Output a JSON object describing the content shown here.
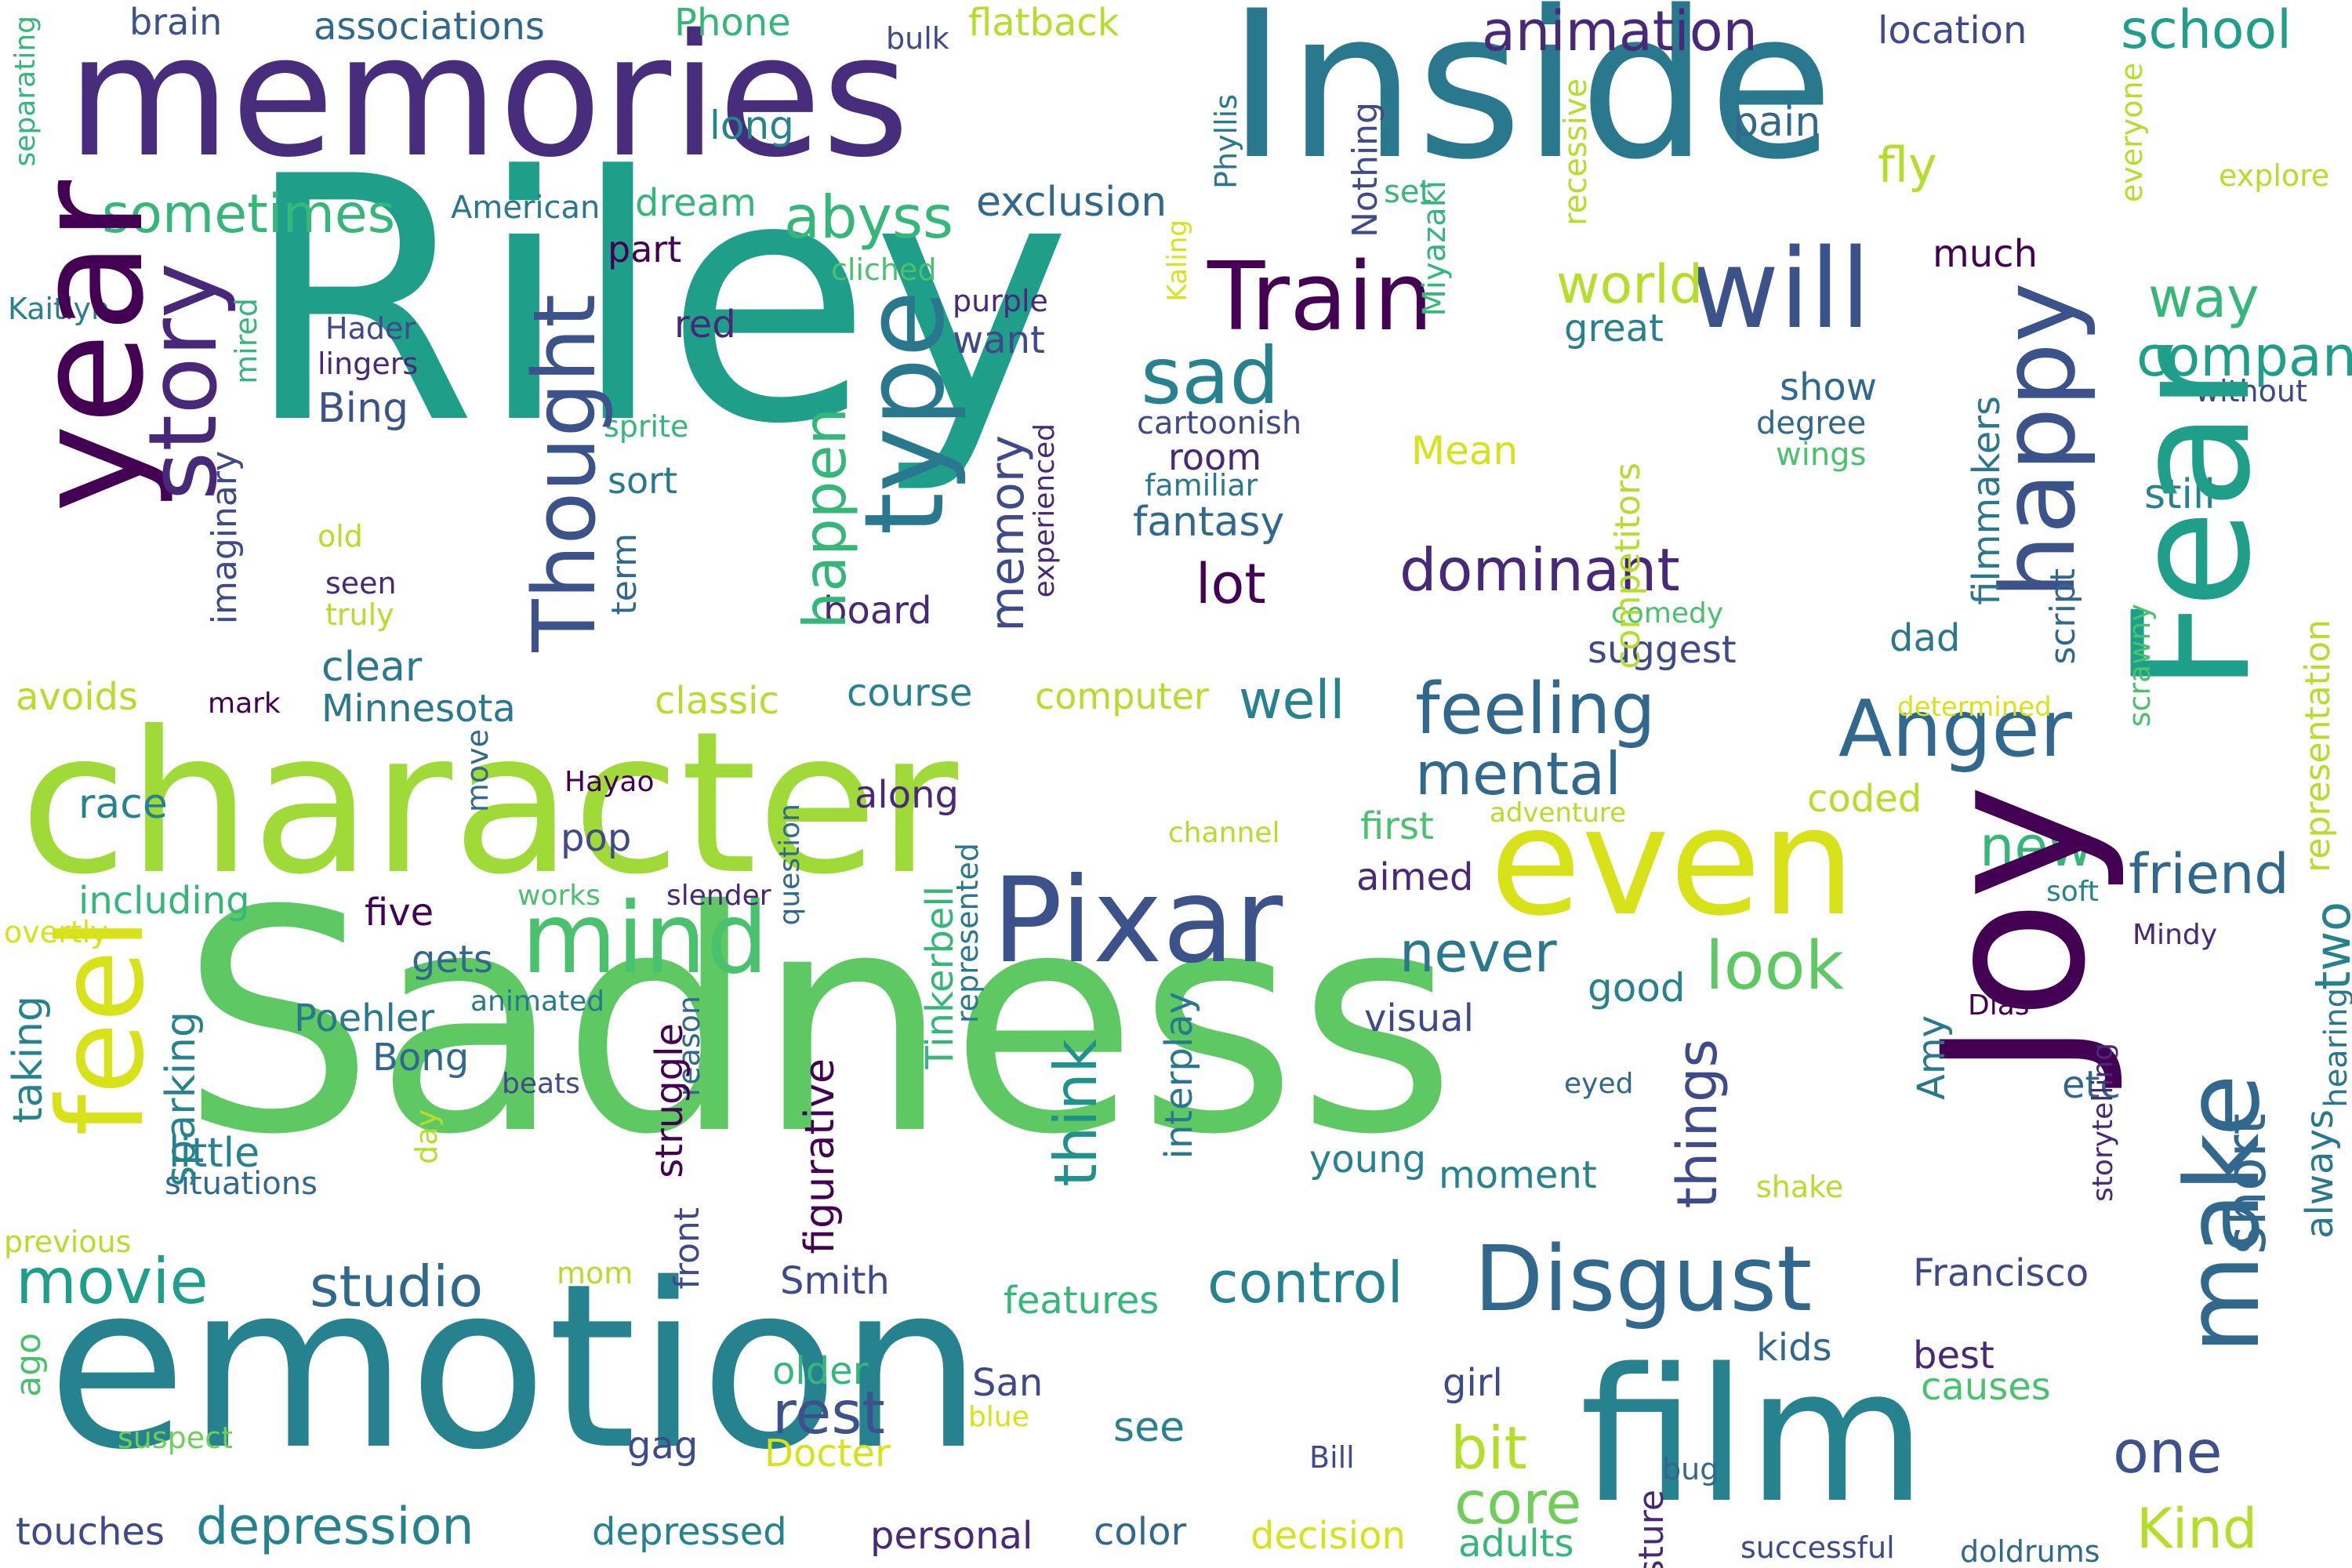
{
  "colors": {
    "background": "#ffffff",
    "palette": [
      "#440154",
      "#482878",
      "#3e4a89",
      "#31688e",
      "#26828e",
      "#1f9e89",
      "#35b779",
      "#6ece58",
      "#b5de2b",
      "#fde725"
    ]
  },
  "words": [
    {
      "text": "Riley",
      "color": "#1f9e89"
    },
    {
      "text": "Sadness",
      "color": "#5ec962"
    },
    {
      "text": "emotion",
      "color": "#26828e"
    },
    {
      "text": "character",
      "color": "#a0da39"
    },
    {
      "text": "memories",
      "color": "#472d7b"
    },
    {
      "text": "Inside",
      "color": "#2a788e"
    },
    {
      "text": "Joy",
      "color": "#440154"
    },
    {
      "text": "year",
      "color": "#440154"
    },
    {
      "text": "Fear",
      "color": "#1f9e89"
    },
    {
      "text": "film",
      "color": "#26828e"
    },
    {
      "text": "even",
      "color": "#d8e219"
    },
    {
      "text": "Pixar",
      "color": "#3b528b"
    },
    {
      "text": "Disgust",
      "color": "#31688e"
    },
    {
      "text": "mind",
      "color": "#4ac16d"
    },
    {
      "text": "feel",
      "color": "#d8e219"
    },
    {
      "text": "type",
      "color": "#2a788e"
    },
    {
      "text": "happy",
      "color": "#3b528b"
    },
    {
      "text": "make",
      "color": "#31688e"
    },
    {
      "text": "story",
      "color": "#482878"
    },
    {
      "text": "Thought",
      "color": "#3b528b"
    },
    {
      "text": "Train",
      "color": "#440154"
    },
    {
      "text": "will",
      "color": "#3b528b"
    },
    {
      "text": "sad",
      "color": "#26828e"
    },
    {
      "text": "Anger",
      "color": "#31688e"
    },
    {
      "text": "feeling",
      "color": "#31688e"
    },
    {
      "text": "mental",
      "color": "#31688e"
    },
    {
      "text": "dominant",
      "color": "#482878"
    },
    {
      "text": "animation",
      "color": "#482878"
    },
    {
      "text": "school",
      "color": "#1f9e89"
    },
    {
      "text": "abyss",
      "color": "#35b779"
    },
    {
      "text": "sometimes",
      "color": "#35b779"
    },
    {
      "text": "exclusion",
      "color": "#31688e"
    },
    {
      "text": "look",
      "color": "#5ec962"
    },
    {
      "text": "never",
      "color": "#2a788e"
    },
    {
      "text": "control",
      "color": "#26828e"
    },
    {
      "text": "studio",
      "color": "#31688e"
    },
    {
      "text": "movie",
      "color": "#1f9e89"
    },
    {
      "text": "rest",
      "color": "#3b528b"
    },
    {
      "text": "depression",
      "color": "#26828e"
    },
    {
      "text": "core",
      "color": "#6ece58"
    },
    {
      "text": "bit",
      "color": "#b5de2b"
    },
    {
      "text": "Kind",
      "color": "#b5de2b"
    },
    {
      "text": "one",
      "color": "#3b528b"
    },
    {
      "text": "friend",
      "color": "#31688e"
    },
    {
      "text": "company",
      "color": "#26828e"
    },
    {
      "text": "way",
      "color": "#31688e"
    },
    {
      "text": "world",
      "color": "#1f9e89"
    },
    {
      "text": "short",
      "color": "#35b779"
    },
    {
      "text": "two",
      "color": "#b5de2b"
    },
    {
      "text": "think",
      "color": "#21918c"
    },
    {
      "text": "things",
      "color": "#3e4a89"
    },
    {
      "text": "happen",
      "color": "#35b779"
    },
    {
      "text": "memory",
      "color": "#3e4a89"
    },
    {
      "text": "well",
      "color": "#26828e"
    },
    {
      "text": "lot",
      "color": "#440154"
    },
    {
      "text": "fantasy",
      "color": "#31688e"
    },
    {
      "text": "room",
      "color": "#482878"
    },
    {
      "text": "new",
      "color": "#35b779"
    },
    {
      "text": "long",
      "color": "#26828e"
    },
    {
      "text": "brain",
      "color": "#3b528b"
    },
    {
      "text": "associations",
      "color": "#31688e"
    },
    {
      "text": "Phone",
      "color": "#35b779"
    },
    {
      "text": "flatback",
      "color": "#b5de2b"
    },
    {
      "text": "bulk",
      "color": "#3e4a89"
    },
    {
      "text": "location",
      "color": "#3e4a89"
    },
    {
      "text": "pain",
      "color": "#31688e"
    },
    {
      "text": "fly",
      "color": "#b5de2b"
    },
    {
      "text": "much",
      "color": "#440154"
    },
    {
      "text": "dream",
      "color": "#35b779"
    },
    {
      "text": "part",
      "color": "#440154"
    },
    {
      "text": "American",
      "color": "#2a788e"
    },
    {
      "text": "red",
      "color": "#482878"
    },
    {
      "text": "want",
      "color": "#3e4a89"
    },
    {
      "text": "purple",
      "color": "#482878"
    },
    {
      "text": "cliched",
      "color": "#4ac16d"
    },
    {
      "text": "sort",
      "color": "#2a788e"
    },
    {
      "text": "show",
      "color": "#31688e"
    },
    {
      "text": "degree",
      "color": "#31688e"
    },
    {
      "text": "wings",
      "color": "#4ac16d"
    },
    {
      "text": "without",
      "color": "#3e4a89"
    },
    {
      "text": "Mean",
      "color": "#d8e219"
    },
    {
      "text": "great",
      "color": "#b5de2b"
    },
    {
      "text": "still",
      "color": "#26828e"
    },
    {
      "text": "cartoonish",
      "color": "#3e4a89"
    },
    {
      "text": "familiar",
      "color": "#2a788e"
    },
    {
      "text": "board",
      "color": "#482878"
    },
    {
      "text": "suggest",
      "color": "#3e4a89"
    },
    {
      "text": "comedy",
      "color": "#4ac16d"
    },
    {
      "text": "dad",
      "color": "#2a788e"
    },
    {
      "text": "classic",
      "color": "#b5de2b"
    },
    {
      "text": "course",
      "color": "#26828e"
    },
    {
      "text": "computer",
      "color": "#b5de2b"
    },
    {
      "text": "clear",
      "color": "#2a788e"
    },
    {
      "text": "Minnesota",
      "color": "#2a788e"
    },
    {
      "text": "avoids",
      "color": "#b5de2b"
    },
    {
      "text": "mark",
      "color": "#440154"
    },
    {
      "text": "along",
      "color": "#482878"
    },
    {
      "text": "first",
      "color": "#4ac16d"
    },
    {
      "text": "aimed",
      "color": "#482878"
    },
    {
      "text": "coded",
      "color": "#b5de2b"
    },
    {
      "text": "adventure",
      "color": "#b5de2b"
    },
    {
      "text": "channel",
      "color": "#b5de2b"
    },
    {
      "text": "determined",
      "color": "#d8e219"
    },
    {
      "text": "race",
      "color": "#26828e"
    },
    {
      "text": "Hayao",
      "color": "#440154"
    },
    {
      "text": "pop",
      "color": "#3e4a89"
    },
    {
      "text": "including",
      "color": "#35b779"
    },
    {
      "text": "five",
      "color": "#440154"
    },
    {
      "text": "gets",
      "color": "#31688e"
    },
    {
      "text": "works",
      "color": "#4ac16d"
    },
    {
      "text": "slender",
      "color": "#482878"
    },
    {
      "text": "soft",
      "color": "#26828e"
    },
    {
      "text": "Mindy",
      "color": "#482878"
    },
    {
      "text": "Dias",
      "color": "#440154"
    },
    {
      "text": "good",
      "color": "#26828e"
    },
    {
      "text": "visual",
      "color": "#3e4a89"
    },
    {
      "text": "overtly",
      "color": "#d8e219"
    },
    {
      "text": "animated",
      "color": "#2a788e"
    },
    {
      "text": "Poehler",
      "color": "#2a788e"
    },
    {
      "text": "Bong",
      "color": "#31688e"
    },
    {
      "text": "beats",
      "color": "#3e4a89"
    },
    {
      "text": "eyed",
      "color": "#31688e"
    },
    {
      "text": "etc",
      "color": "#31688e"
    },
    {
      "text": "little",
      "color": "#26828e"
    },
    {
      "text": "situations",
      "color": "#31688e"
    },
    {
      "text": "young",
      "color": "#26828e"
    },
    {
      "text": "moment",
      "color": "#26828e"
    },
    {
      "text": "previous",
      "color": "#b5de2b"
    },
    {
      "text": "shake",
      "color": "#b5de2b"
    },
    {
      "text": "mom",
      "color": "#b5de2b"
    },
    {
      "text": "Smith",
      "color": "#3e4a89"
    },
    {
      "text": "Francisco",
      "color": "#3e4a89"
    },
    {
      "text": "features",
      "color": "#35b779"
    },
    {
      "text": "older",
      "color": "#35b779"
    },
    {
      "text": "San",
      "color": "#3e4a89"
    },
    {
      "text": "girl",
      "color": "#3e4a89"
    },
    {
      "text": "kids",
      "color": "#31688e"
    },
    {
      "text": "best",
      "color": "#482878"
    },
    {
      "text": "causes",
      "color": "#4ac16d"
    },
    {
      "text": "suspect",
      "color": "#6ece58"
    },
    {
      "text": "blue",
      "color": "#d8e219"
    },
    {
      "text": "gag",
      "color": "#3e4a89"
    },
    {
      "text": "Docter",
      "color": "#d8e219"
    },
    {
      "text": "see",
      "color": "#26828e"
    },
    {
      "text": "Bill",
      "color": "#3e4a89"
    },
    {
      "text": "bug",
      "color": "#31688e"
    },
    {
      "text": "touches",
      "color": "#3e4a89"
    },
    {
      "text": "depressed",
      "color": "#26828e"
    },
    {
      "text": "personal",
      "color": "#482878"
    },
    {
      "text": "color",
      "color": "#31688e"
    },
    {
      "text": "decision",
      "color": "#d8e219"
    },
    {
      "text": "adults",
      "color": "#35b779"
    },
    {
      "text": "successful",
      "color": "#3e4a89"
    },
    {
      "text": "doldrums",
      "color": "#31688e"
    },
    {
      "text": "Hader",
      "color": "#3e4a89"
    },
    {
      "text": "lingers",
      "color": "#482878"
    },
    {
      "text": "Bing",
      "color": "#3b528b"
    },
    {
      "text": "sprite",
      "color": "#35b779"
    },
    {
      "text": "old",
      "color": "#b5de2b"
    },
    {
      "text": "seen",
      "color": "#482878"
    },
    {
      "text": "truly",
      "color": "#b5de2b"
    },
    {
      "text": "Kaitlyn",
      "color": "#26828e"
    },
    {
      "text": "set",
      "color": "#35b779"
    },
    {
      "text": "explore",
      "color": "#b5de2b"
    },
    {
      "text": "Phyllis",
      "color": "#2a788e",
      "vertical": true
    },
    {
      "text": "Nothing",
      "color": "#3e4a89",
      "vertical": true
    },
    {
      "text": "Miyazaki",
      "color": "#35b779",
      "vertical": true
    },
    {
      "text": "recessive",
      "color": "#b5de2b",
      "vertical": true
    },
    {
      "text": "everyone",
      "color": "#b5de2b",
      "vertical": true
    },
    {
      "text": "separating",
      "color": "#35b779",
      "vertical": true
    },
    {
      "text": "Kaling",
      "color": "#d8e219",
      "vertical": true
    },
    {
      "text": "mired",
      "color": "#35b779",
      "vertical": true
    },
    {
      "text": "imaginary",
      "color": "#3e4a89",
      "vertical": true
    },
    {
      "text": "experienced",
      "color": "#482878",
      "vertical": true
    },
    {
      "text": "term",
      "color": "#31688e",
      "vertical": true
    },
    {
      "text": "filmmakers",
      "color": "#2a788e",
      "vertical": true
    },
    {
      "text": "script",
      "color": "#31688e",
      "vertical": true
    },
    {
      "text": "scrawny",
      "color": "#4ac16d",
      "vertical": true
    },
    {
      "text": "representation",
      "color": "#b5de2b",
      "vertical": true
    },
    {
      "text": "competitors",
      "color": "#31688e",
      "vertical": true
    },
    {
      "text": "move",
      "color": "#31688e",
      "vertical": true
    },
    {
      "text": "question",
      "color": "#2a788e",
      "vertical": true
    },
    {
      "text": "represented",
      "color": "#35b779",
      "vertical": true
    },
    {
      "text": "Tinkerbell",
      "color": "#31688e",
      "vertical": true
    },
    {
      "text": "reason",
      "color": "#440154",
      "vertical": true
    },
    {
      "text": "struggle",
      "color": "#26828e",
      "vertical": true
    },
    {
      "text": "taking",
      "color": "#26828e",
      "vertical": true
    },
    {
      "text": "sparking",
      "color": "#b5de2b",
      "vertical": true
    },
    {
      "text": "day",
      "color": "#3e4a89",
      "vertical": true
    },
    {
      "text": "front",
      "color": "#440154",
      "vertical": true
    },
    {
      "text": "figurative",
      "color": "#2a788e",
      "vertical": true
    },
    {
      "text": "interplay",
      "color": "#2a788e",
      "vertical": true
    },
    {
      "text": "Amy",
      "color": "#482878",
      "vertical": true
    },
    {
      "text": "storytelling",
      "color": "#2a788e",
      "vertical": true
    },
    {
      "text": "hearing",
      "color": "#2a788e",
      "vertical": true
    },
    {
      "text": "always",
      "color": "#4ac16d",
      "vertical": true
    },
    {
      "text": "ago",
      "color": "#482878",
      "vertical": true
    },
    {
      "text": "posture",
      "color": "#3e4a89",
      "vertical": true
    }
  ]
}
